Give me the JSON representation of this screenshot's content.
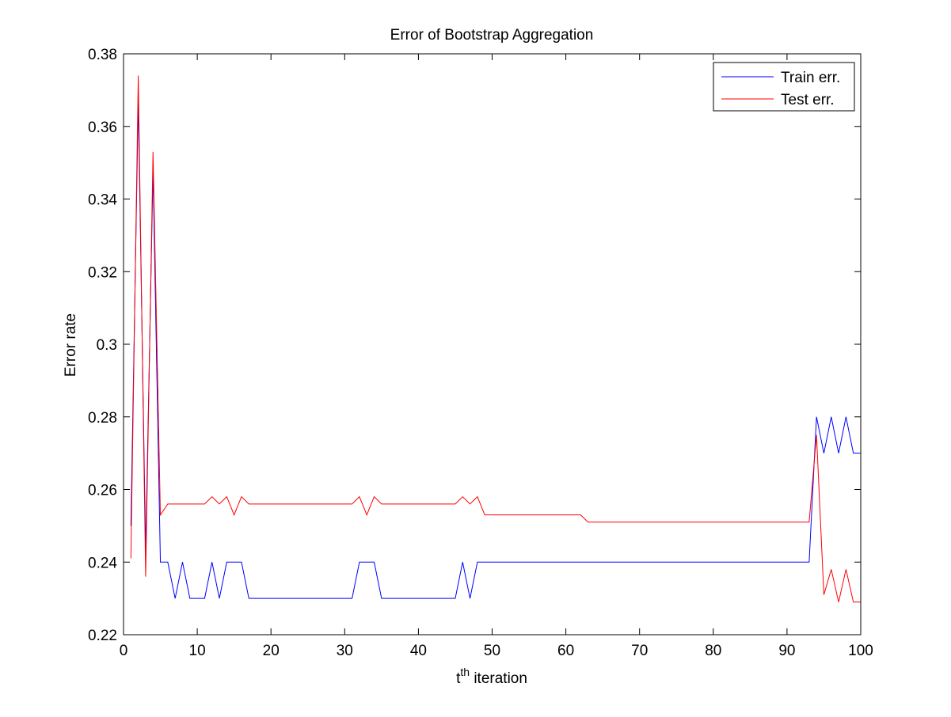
{
  "chart_data": {
    "type": "line",
    "title": "Error of Bootstrap Aggregation",
    "xlabel_base": "t",
    "xlabel_superscript": "th",
    "xlabel_rest": " iteration",
    "ylabel": "Error rate",
    "xlim": [
      0,
      100
    ],
    "ylim": [
      0.22,
      0.38
    ],
    "xticks": [
      0,
      10,
      20,
      30,
      40,
      50,
      60,
      70,
      80,
      90,
      100
    ],
    "yticks": [
      0.22,
      0.24,
      0.26,
      0.28,
      0.3,
      0.32,
      0.34,
      0.36,
      0.38
    ],
    "ytick_labels": [
      "0.22",
      "0.24",
      "0.26",
      "0.28",
      "0.3",
      "0.32",
      "0.34",
      "0.36",
      "0.38"
    ],
    "grid": false,
    "legend_position": "top-right",
    "x": [
      1,
      2,
      3,
      4,
      5,
      6,
      7,
      8,
      9,
      10,
      11,
      12,
      13,
      14,
      15,
      16,
      17,
      18,
      19,
      20,
      21,
      22,
      23,
      24,
      25,
      26,
      27,
      28,
      29,
      30,
      31,
      32,
      33,
      34,
      35,
      36,
      37,
      38,
      39,
      40,
      41,
      42,
      43,
      44,
      45,
      46,
      47,
      48,
      49,
      50,
      51,
      52,
      53,
      54,
      55,
      56,
      57,
      58,
      59,
      60,
      61,
      62,
      63,
      64,
      65,
      66,
      67,
      68,
      69,
      70,
      71,
      72,
      73,
      74,
      75,
      76,
      77,
      78,
      79,
      80,
      81,
      82,
      83,
      84,
      85,
      86,
      87,
      88,
      89,
      90,
      91,
      92,
      93,
      94,
      95,
      96,
      97,
      98,
      99,
      100
    ],
    "series": [
      {
        "name": "Train err.",
        "color": "#0000ff",
        "values": [
          0.25,
          0.367,
          0.243,
          0.348,
          0.24,
          0.24,
          0.23,
          0.24,
          0.23,
          0.23,
          0.23,
          0.24,
          0.23,
          0.24,
          0.24,
          0.24,
          0.23,
          0.23,
          0.23,
          0.23,
          0.23,
          0.23,
          0.23,
          0.23,
          0.23,
          0.23,
          0.23,
          0.23,
          0.23,
          0.23,
          0.23,
          0.24,
          0.24,
          0.24,
          0.23,
          0.23,
          0.23,
          0.23,
          0.23,
          0.23,
          0.23,
          0.23,
          0.23,
          0.23,
          0.23,
          0.24,
          0.23,
          0.24,
          0.24,
          0.24,
          0.24,
          0.24,
          0.24,
          0.24,
          0.24,
          0.24,
          0.24,
          0.24,
          0.24,
          0.24,
          0.24,
          0.24,
          0.24,
          0.24,
          0.24,
          0.24,
          0.24,
          0.24,
          0.24,
          0.24,
          0.24,
          0.24,
          0.24,
          0.24,
          0.24,
          0.24,
          0.24,
          0.24,
          0.24,
          0.24,
          0.24,
          0.24,
          0.24,
          0.24,
          0.24,
          0.24,
          0.24,
          0.24,
          0.24,
          0.24,
          0.24,
          0.24,
          0.24,
          0.28,
          0.27,
          0.28,
          0.27,
          0.28,
          0.27,
          0.27
        ]
      },
      {
        "name": "Test err.",
        "color": "#ff0000",
        "values": [
          0.241,
          0.374,
          0.236,
          0.353,
          0.253,
          0.256,
          0.256,
          0.256,
          0.256,
          0.256,
          0.256,
          0.258,
          0.256,
          0.258,
          0.253,
          0.258,
          0.256,
          0.256,
          0.256,
          0.256,
          0.256,
          0.256,
          0.256,
          0.256,
          0.256,
          0.256,
          0.256,
          0.256,
          0.256,
          0.256,
          0.256,
          0.258,
          0.253,
          0.258,
          0.256,
          0.256,
          0.256,
          0.256,
          0.256,
          0.256,
          0.256,
          0.256,
          0.256,
          0.256,
          0.256,
          0.258,
          0.256,
          0.258,
          0.253,
          0.253,
          0.253,
          0.253,
          0.253,
          0.253,
          0.253,
          0.253,
          0.253,
          0.253,
          0.253,
          0.253,
          0.253,
          0.253,
          0.251,
          0.251,
          0.251,
          0.251,
          0.251,
          0.251,
          0.251,
          0.251,
          0.251,
          0.251,
          0.251,
          0.251,
          0.251,
          0.251,
          0.251,
          0.251,
          0.251,
          0.251,
          0.251,
          0.251,
          0.251,
          0.251,
          0.251,
          0.251,
          0.251,
          0.251,
          0.251,
          0.251,
          0.251,
          0.251,
          0.251,
          0.275,
          0.231,
          0.238,
          0.229,
          0.238,
          0.229,
          0.229
        ]
      }
    ]
  }
}
